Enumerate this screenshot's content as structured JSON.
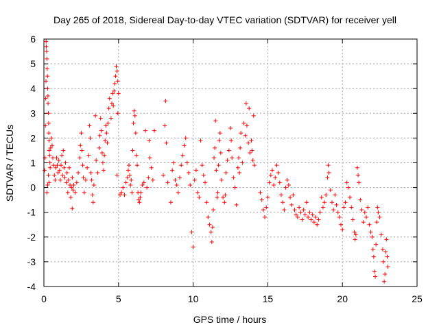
{
  "chart_data": {
    "type": "scatter",
    "title": "Day 265 of 2018, Sidereal Day-to-day VTEC variation (SDTVAR) for receiver yell",
    "xlabel": "GPS time / hours",
    "ylabel": "SDTVAR / TECUs",
    "xlim": [
      0,
      25
    ],
    "ylim": [
      -4,
      6
    ],
    "xticks": [
      0,
      5,
      10,
      15,
      20,
      25
    ],
    "yticks": [
      -4,
      -3,
      -2,
      -1,
      0,
      1,
      2,
      3,
      4,
      5,
      6
    ],
    "xtick_labels": [
      "0",
      "5",
      "10",
      "15",
      "20",
      "25"
    ],
    "ytick_labels": [
      "-4",
      "-3",
      "-2",
      "-1",
      "0",
      "1",
      "2",
      "3",
      "4",
      "5",
      "6"
    ],
    "grid": true,
    "marker": "+",
    "color": "#ff0000",
    "series": [
      {
        "name": "SDTVAR",
        "points": [
          [
            0.05,
            0.7
          ],
          [
            0.08,
            1.2
          ],
          [
            0.1,
            2.5
          ],
          [
            0.12,
            3.6
          ],
          [
            0.14,
            4.3
          ],
          [
            0.15,
            5.9
          ],
          [
            0.16,
            5.7
          ],
          [
            0.18,
            5.5
          ],
          [
            0.2,
            5.2
          ],
          [
            0.22,
            4.8
          ],
          [
            0.24,
            4.5
          ],
          [
            0.25,
            4.0
          ],
          [
            0.27,
            3.7
          ],
          [
            0.28,
            3.4
          ],
          [
            0.3,
            3.0
          ],
          [
            0.32,
            2.6
          ],
          [
            0.33,
            2.2
          ],
          [
            0.35,
            1.9
          ],
          [
            0.36,
            1.5
          ],
          [
            0.38,
            1.3
          ],
          [
            0.4,
            1.0
          ],
          [
            0.42,
            0.8
          ],
          [
            0.2,
            -0.2
          ],
          [
            0.25,
            0.1
          ],
          [
            0.3,
            0.5
          ],
          [
            0.35,
            0.2
          ],
          [
            0.45,
            1.6
          ],
          [
            0.5,
            2.0
          ],
          [
            0.55,
            1.7
          ],
          [
            0.6,
            1.2
          ],
          [
            0.65,
            0.9
          ],
          [
            0.7,
            0.5
          ],
          [
            0.75,
            0.3
          ],
          [
            0.8,
            0.8
          ],
          [
            0.85,
            1.2
          ],
          [
            0.9,
            0.9
          ],
          [
            0.95,
            0.6
          ],
          [
            1.0,
            1.1
          ],
          [
            1.05,
            0.7
          ],
          [
            1.1,
            0.3
          ],
          [
            1.15,
            0.9
          ],
          [
            1.2,
            1.3
          ],
          [
            1.25,
            0.5
          ],
          [
            1.3,
            1.5
          ],
          [
            1.35,
            0.8
          ],
          [
            1.4,
            0.4
          ],
          [
            1.45,
            1.0
          ],
          [
            1.5,
            0.2
          ],
          [
            1.55,
            0.6
          ],
          [
            1.6,
            -0.2
          ],
          [
            1.65,
            0.3
          ],
          [
            1.7,
            0.8
          ],
          [
            1.75,
            0.1
          ],
          [
            1.8,
            -0.4
          ],
          [
            1.85,
            0.0
          ],
          [
            1.9,
            0.4
          ],
          [
            1.95,
            -0.1
          ],
          [
            2.0,
            0.1
          ],
          [
            2.1,
            -0.2
          ],
          [
            2.2,
            0.2
          ],
          [
            1.9,
            -0.85
          ],
          [
            2.3,
            0.6
          ],
          [
            2.4,
            1.2
          ],
          [
            2.45,
            1.7
          ],
          [
            2.5,
            2.2
          ],
          [
            2.55,
            1.5
          ],
          [
            2.6,
            0.9
          ],
          [
            2.65,
            0.4
          ],
          [
            2.7,
            -0.2
          ],
          [
            2.8,
            0.3
          ],
          [
            2.9,
            0.8
          ],
          [
            3.0,
            1.3
          ],
          [
            3.05,
            2.5
          ],
          [
            3.1,
            2.0
          ],
          [
            3.15,
            0.6
          ],
          [
            3.2,
            0.3
          ],
          [
            3.25,
            -0.3
          ],
          [
            3.3,
            -0.6
          ],
          [
            3.35,
            0.1
          ],
          [
            3.45,
            2.9
          ],
          [
            3.5,
            1.1
          ],
          [
            3.6,
            0.6
          ],
          [
            3.7,
            1.6
          ],
          [
            3.75,
            2.1
          ],
          [
            3.8,
            2.8
          ],
          [
            3.85,
            2.3
          ],
          [
            3.9,
            1.4
          ],
          [
            3.95,
            1.0
          ],
          [
            4.0,
            0.7
          ],
          [
            4.05,
            1.3
          ],
          [
            4.1,
            1.9
          ],
          [
            4.15,
            2.5
          ],
          [
            4.2,
            2.2
          ],
          [
            4.25,
            1.8
          ],
          [
            4.3,
            2.6
          ],
          [
            4.35,
            3.2
          ],
          [
            4.4,
            3.6
          ],
          [
            4.5,
            2.8
          ],
          [
            4.55,
            3.4
          ],
          [
            4.6,
            3.8
          ],
          [
            4.65,
            3.3
          ],
          [
            4.7,
            3.9
          ],
          [
            4.75,
            4.2
          ],
          [
            4.8,
            4.5
          ],
          [
            4.85,
            4.9
          ],
          [
            4.9,
            4.7
          ],
          [
            4.95,
            4.3
          ],
          [
            5.0,
            3.8
          ],
          [
            4.95,
            3.0
          ],
          [
            4.9,
            0.5
          ],
          [
            5.1,
            -0.3
          ],
          [
            5.2,
            -0.2
          ],
          [
            5.3,
            0.0
          ],
          [
            5.4,
            -0.3
          ],
          [
            5.5,
            0.2
          ],
          [
            5.6,
            0.4
          ],
          [
            5.65,
            0.7
          ],
          [
            5.7,
            0.9
          ],
          [
            5.75,
            0.5
          ],
          [
            5.8,
            0.1
          ],
          [
            5.85,
            0.3
          ],
          [
            5.9,
            -0.2
          ],
          [
            5.95,
            1.5
          ],
          [
            6.0,
            2.6
          ],
          [
            6.05,
            3.1
          ],
          [
            6.1,
            2.9
          ],
          [
            6.15,
            2.2
          ],
          [
            6.2,
            1.3
          ],
          [
            6.25,
            0.9
          ],
          [
            6.3,
            -0.2
          ],
          [
            6.35,
            -0.5
          ],
          [
            6.4,
            -0.6
          ],
          [
            6.45,
            -0.4
          ],
          [
            6.5,
            -0.2
          ],
          [
            6.6,
            0.1
          ],
          [
            6.7,
            0.2
          ],
          [
            6.8,
            2.3
          ],
          [
            6.9,
            0.0
          ],
          [
            7.0,
            0.4
          ],
          [
            7.05,
            1.9
          ],
          [
            7.1,
            1.2
          ],
          [
            7.2,
            0.8
          ],
          [
            7.3,
            0.3
          ],
          [
            7.4,
            2.3
          ],
          [
            8.0,
            0.5
          ],
          [
            8.1,
            2.5
          ],
          [
            8.15,
            3.5
          ],
          [
            8.2,
            1.8
          ],
          [
            8.3,
            0.2
          ],
          [
            8.5,
            -0.6
          ],
          [
            8.6,
            0.7
          ],
          [
            8.7,
            1.0
          ],
          [
            8.8,
            0.3
          ],
          [
            8.9,
            0.1
          ],
          [
            9.0,
            -0.2
          ],
          [
            9.1,
            0.4
          ],
          [
            9.2,
            0.9
          ],
          [
            9.3,
            1.3
          ],
          [
            9.4,
            1.7
          ],
          [
            9.5,
            2.0
          ],
          [
            9.6,
            1.0
          ],
          [
            9.7,
            0.6
          ],
          [
            9.8,
            0.1
          ],
          [
            9.9,
            -1.8
          ],
          [
            10.0,
            -2.4
          ],
          [
            10.1,
            0.3
          ],
          [
            10.2,
            0.7
          ],
          [
            10.3,
            -0.2
          ],
          [
            10.4,
            -0.4
          ],
          [
            10.5,
            1.9
          ],
          [
            10.6,
            0.9
          ],
          [
            10.7,
            0.5
          ],
          [
            10.8,
            0.2
          ],
          [
            10.9,
            -0.6
          ],
          [
            11.0,
            -1.2
          ],
          [
            11.1,
            -1.5
          ],
          [
            11.2,
            -1.8
          ],
          [
            11.25,
            -2.2
          ],
          [
            11.3,
            -1.6
          ],
          [
            11.35,
            -0.9
          ],
          [
            11.4,
            1.2
          ],
          [
            11.45,
            1.6
          ],
          [
            11.5,
            2.7
          ],
          [
            11.55,
            0.7
          ],
          [
            11.6,
            -0.4
          ],
          [
            11.65,
            -0.2
          ],
          [
            11.7,
            0.9
          ],
          [
            11.75,
            1.9
          ],
          [
            11.8,
            2.2
          ],
          [
            11.85,
            1.4
          ],
          [
            11.9,
            0.3
          ],
          [
            12.0,
            -0.4
          ],
          [
            12.1,
            -0.6
          ],
          [
            12.15,
            -0.3
          ],
          [
            12.2,
            0.6
          ],
          [
            12.3,
            1.1
          ],
          [
            12.4,
            1.5
          ],
          [
            12.5,
            2.4
          ],
          [
            12.55,
            1.9
          ],
          [
            12.6,
            1.2
          ],
          [
            12.7,
            0.4
          ],
          [
            12.8,
            0.0
          ],
          [
            12.9,
            -0.7
          ],
          [
            13.0,
            0.8
          ],
          [
            13.05,
            1.2
          ],
          [
            13.1,
            0.6
          ],
          [
            13.15,
            1.6
          ],
          [
            13.2,
            2.2
          ],
          [
            13.3,
            1.0
          ],
          [
            13.4,
            2.6
          ],
          [
            13.5,
            2.1
          ],
          [
            13.55,
            3.4
          ],
          [
            13.6,
            2.5
          ],
          [
            13.7,
            1.8
          ],
          [
            13.75,
            3.2
          ],
          [
            13.8,
            1.4
          ],
          [
            13.9,
            1.9
          ],
          [
            13.95,
            1.5
          ],
          [
            14.0,
            1.1
          ],
          [
            14.05,
            2.9
          ],
          [
            14.1,
            0.9
          ],
          [
            14.5,
            -0.2
          ],
          [
            14.6,
            -0.5
          ],
          [
            14.7,
            -0.9
          ],
          [
            14.8,
            -1.2
          ],
          [
            14.9,
            -0.8
          ],
          [
            15.0,
            -0.4
          ],
          [
            15.1,
            0.2
          ],
          [
            15.2,
            0.5
          ],
          [
            15.3,
            0.7
          ],
          [
            15.4,
            0.1
          ],
          [
            15.5,
            0.4
          ],
          [
            15.6,
            0.9
          ],
          [
            15.7,
            0.6
          ],
          [
            15.8,
            0.2
          ],
          [
            15.9,
            -0.3
          ],
          [
            16.0,
            -0.6
          ],
          [
            16.1,
            -0.9
          ],
          [
            16.2,
            0.0
          ],
          [
            16.3,
            0.3
          ],
          [
            16.4,
            0.1
          ],
          [
            16.5,
            -0.4
          ],
          [
            16.6,
            -0.7
          ],
          [
            16.7,
            -0.3
          ],
          [
            16.8,
            -0.9
          ],
          [
            16.9,
            -1.1
          ],
          [
            17.0,
            -1.2
          ],
          [
            17.1,
            -0.8
          ],
          [
            17.2,
            -1.0
          ],
          [
            17.3,
            -1.3
          ],
          [
            17.4,
            -0.9
          ],
          [
            17.5,
            -1.1
          ],
          [
            17.6,
            -0.6
          ],
          [
            17.7,
            -1.2
          ],
          [
            17.8,
            -1.0
          ],
          [
            17.9,
            -1.3
          ],
          [
            18.0,
            -1.1
          ],
          [
            18.1,
            -1.4
          ],
          [
            18.2,
            -1.2
          ],
          [
            18.3,
            -1.5
          ],
          [
            18.4,
            -1.3
          ],
          [
            18.5,
            -1.0
          ],
          [
            18.6,
            -0.4
          ],
          [
            18.7,
            -0.8
          ],
          [
            18.8,
            -0.6
          ],
          [
            18.9,
            -0.3
          ],
          [
            19.0,
            0.4
          ],
          [
            19.05,
            0.9
          ],
          [
            19.1,
            0.6
          ],
          [
            19.2,
            -0.1
          ],
          [
            19.3,
            -0.6
          ],
          [
            19.4,
            -0.9
          ],
          [
            19.5,
            -0.3
          ],
          [
            19.6,
            -0.7
          ],
          [
            19.7,
            -1.0
          ],
          [
            19.8,
            -1.2
          ],
          [
            19.9,
            -1.5
          ],
          [
            20.0,
            -1.7
          ],
          [
            20.1,
            -0.8
          ],
          [
            20.2,
            -0.6
          ],
          [
            20.3,
            0.2
          ],
          [
            20.4,
            0.0
          ],
          [
            20.5,
            -0.4
          ],
          [
            20.6,
            -0.8
          ],
          [
            20.7,
            -1.3
          ],
          [
            20.8,
            -1.8
          ],
          [
            20.85,
            -2.1
          ],
          [
            20.9,
            -1.9
          ],
          [
            21.0,
            0.8
          ],
          [
            21.05,
            0.5
          ],
          [
            21.1,
            0.2
          ],
          [
            21.2,
            -0.5
          ],
          [
            21.3,
            -0.9
          ],
          [
            21.4,
            -1.4
          ],
          [
            21.5,
            -1.0
          ],
          [
            21.6,
            -1.2
          ],
          [
            21.7,
            -0.8
          ],
          [
            21.8,
            -1.5
          ],
          [
            21.9,
            -1.8
          ],
          [
            22.0,
            -2.0
          ],
          [
            22.05,
            -2.5
          ],
          [
            22.1,
            -2.8
          ],
          [
            22.15,
            -3.4
          ],
          [
            22.2,
            -3.6
          ],
          [
            22.25,
            -2.3
          ],
          [
            22.3,
            -1.4
          ],
          [
            22.35,
            -0.8
          ],
          [
            22.4,
            -1.0
          ],
          [
            22.5,
            -1.2
          ],
          [
            22.6,
            -1.9
          ],
          [
            22.7,
            -2.5
          ],
          [
            22.75,
            -3.0
          ],
          [
            22.8,
            -3.8
          ],
          [
            22.85,
            -3.5
          ],
          [
            22.9,
            -2.6
          ],
          [
            22.95,
            -2.1
          ],
          [
            23.0,
            -2.8
          ],
          [
            23.05,
            -3.2
          ]
        ]
      }
    ]
  }
}
